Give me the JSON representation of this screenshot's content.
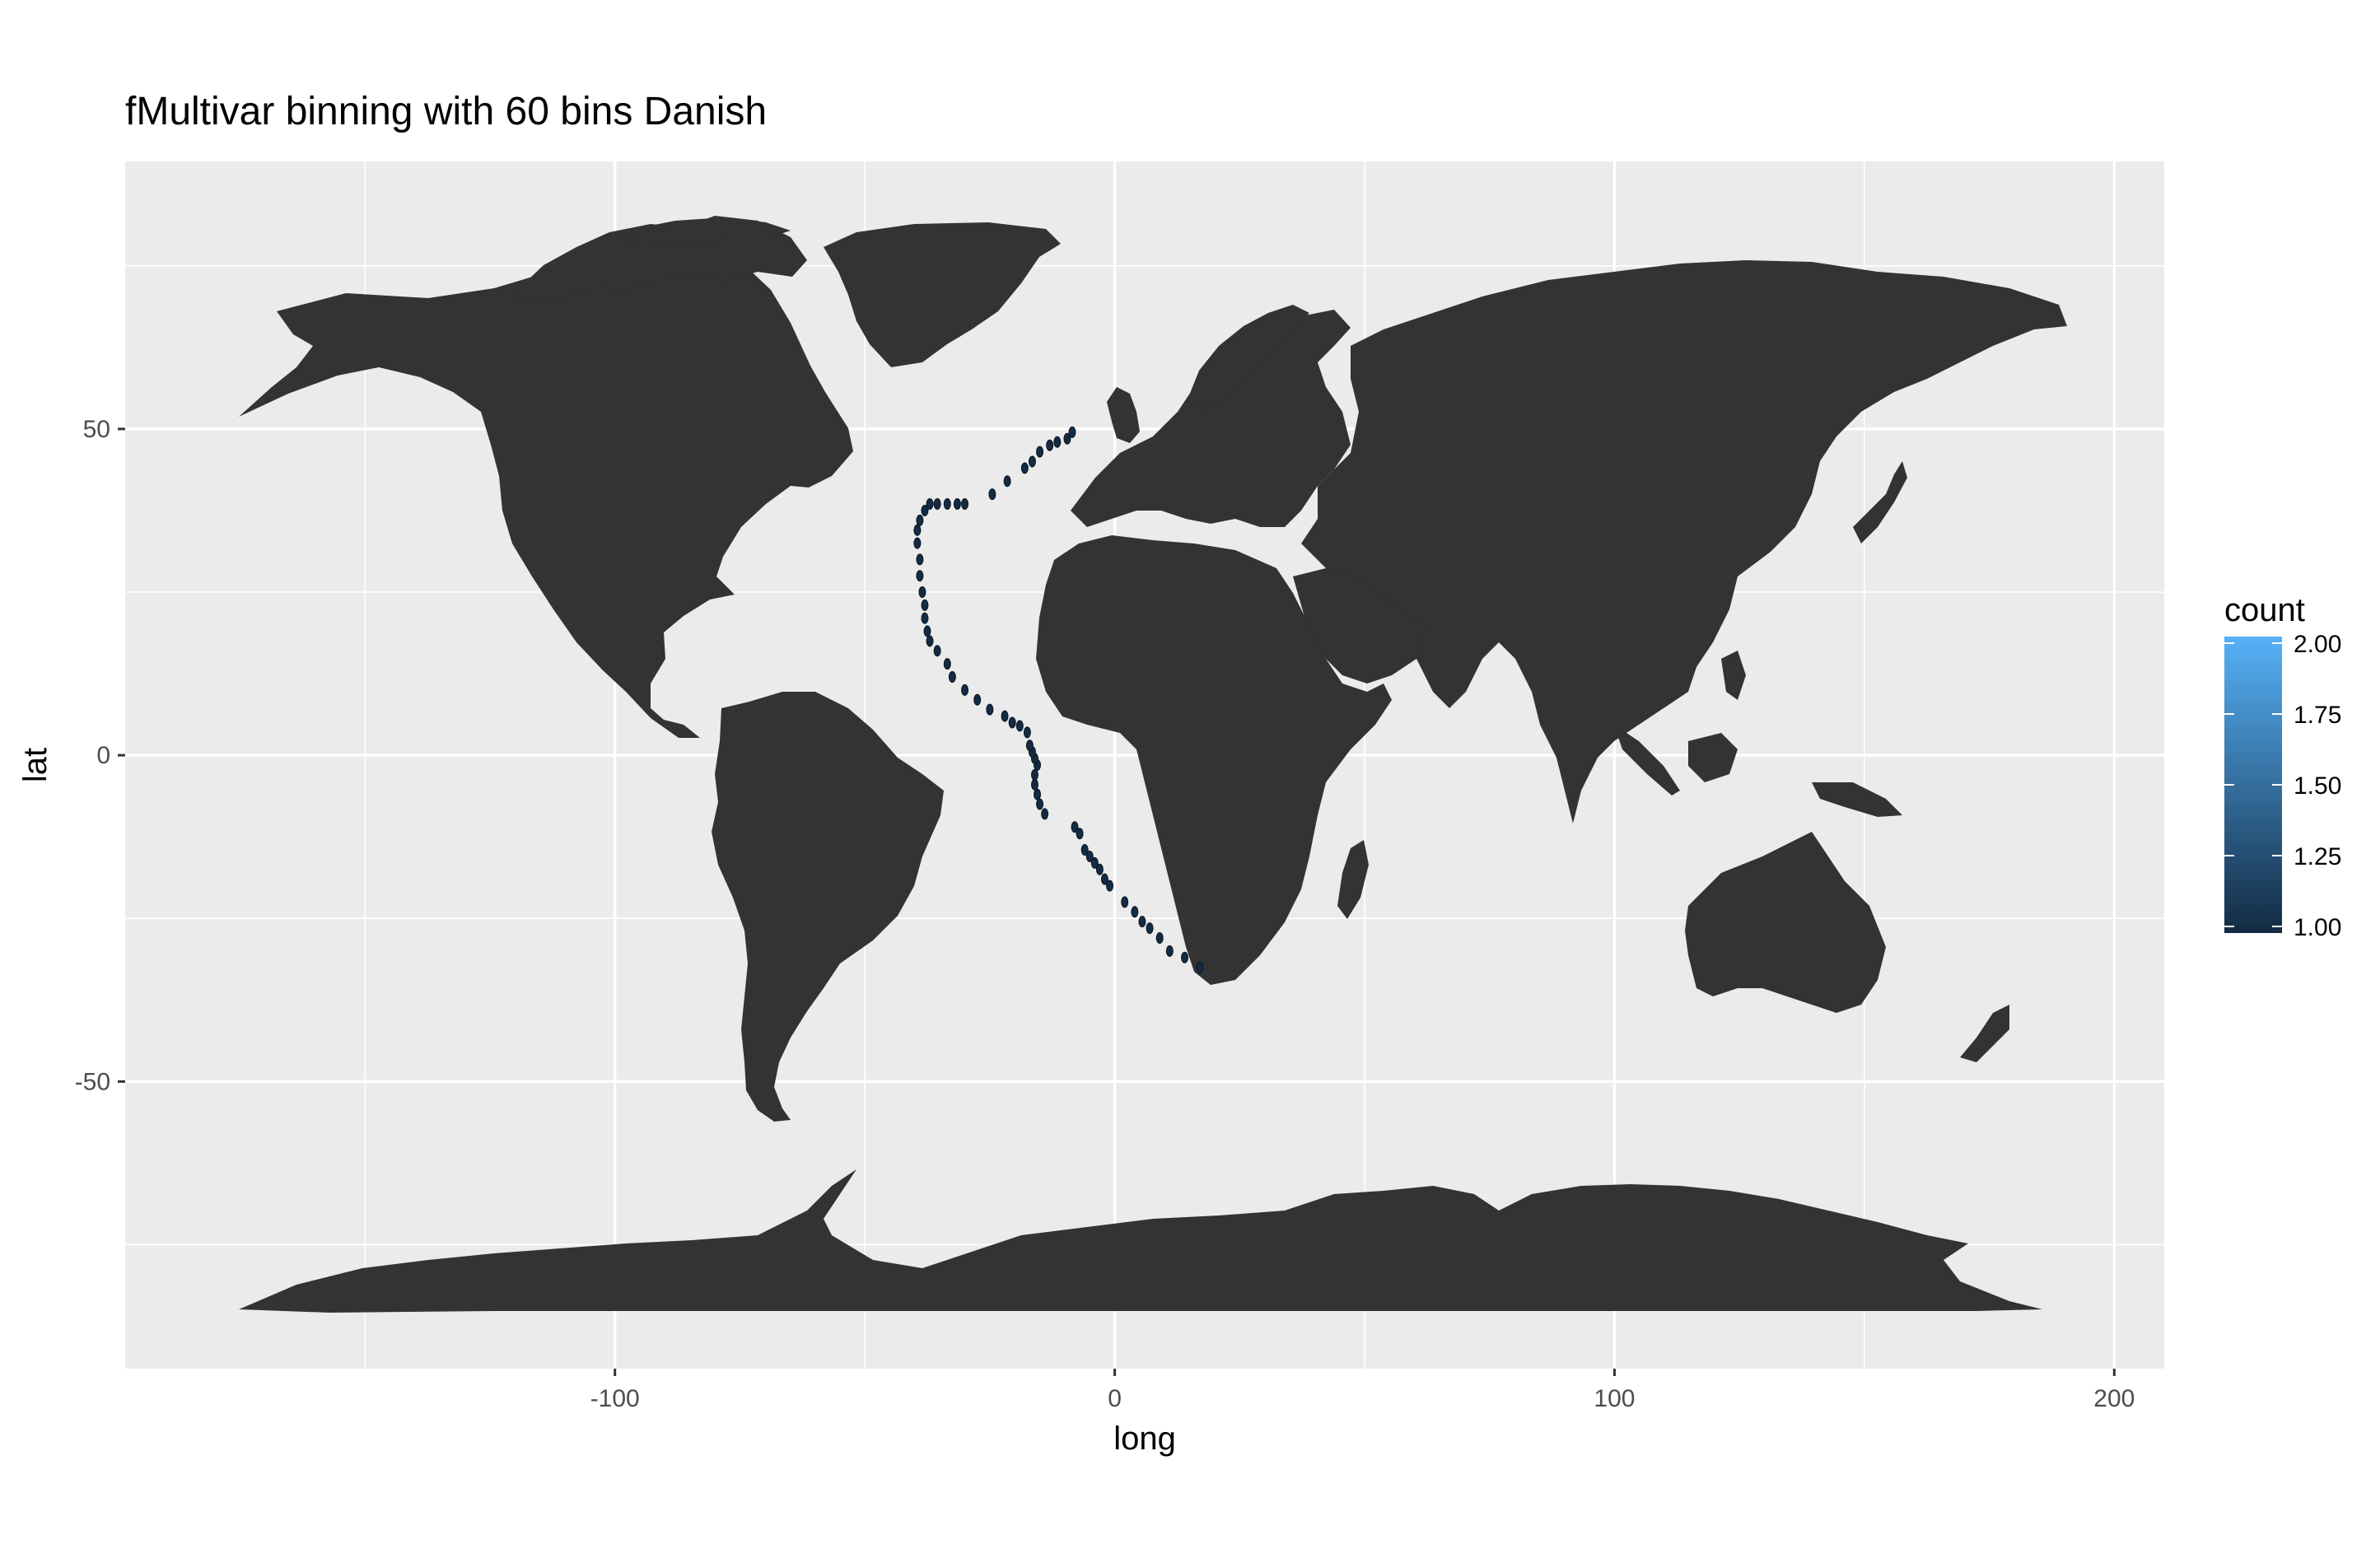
{
  "chart_data": {
    "type": "scatter",
    "title": "fMultivar binning with 60 bins Danish",
    "xlabel": "long",
    "ylabel": "lat",
    "xlim": [
      -198,
      210
    ],
    "ylim": [
      -94,
      91
    ],
    "x_ticks": [
      -100,
      0,
      100,
      200
    ],
    "x_tick_labels": [
      "-100",
      "0",
      "100",
      "200"
    ],
    "y_ticks": [
      -50,
      0,
      50
    ],
    "y_tick_labels": [
      "-50",
      "0",
      "50"
    ],
    "x_minor": [
      -150,
      -50,
      50,
      150
    ],
    "y_minor": [
      -75,
      -25,
      25,
      75
    ],
    "grid": true,
    "background": "world map (land masses)",
    "colors": {
      "panel": "#ebebeb",
      "land": "#333333",
      "grid": "#ffffff",
      "point": "#132b43",
      "low": "#132b43",
      "high": "#56b1f7"
    },
    "legend": {
      "title": "count",
      "position": "right",
      "min": 1.0,
      "max": 2.0,
      "breaks": [
        1.0,
        1.25,
        1.5,
        1.75,
        2.0
      ],
      "labels": [
        "1.00",
        "1.25",
        "1.50",
        "1.75",
        "2.00"
      ]
    },
    "points": [
      {
        "long": 17,
        "lat": -32.5,
        "count": 1
      },
      {
        "long": 14,
        "lat": -31,
        "count": 1
      },
      {
        "long": 11,
        "lat": -30,
        "count": 1
      },
      {
        "long": 9,
        "lat": -28,
        "count": 1
      },
      {
        "long": 7,
        "lat": -26.5,
        "count": 1
      },
      {
        "long": 5.5,
        "lat": -25.5,
        "count": 1
      },
      {
        "long": 4,
        "lat": -24,
        "count": 1
      },
      {
        "long": 2,
        "lat": -22.5,
        "count": 1
      },
      {
        "long": -1,
        "lat": -20,
        "count": 1
      },
      {
        "long": -2,
        "lat": -19,
        "count": 1
      },
      {
        "long": -3,
        "lat": -17.5,
        "count": 1
      },
      {
        "long": -4,
        "lat": -16.5,
        "count": 1
      },
      {
        "long": -5,
        "lat": -15.5,
        "count": 1
      },
      {
        "long": -6,
        "lat": -14.5,
        "count": 1
      },
      {
        "long": -7,
        "lat": -12,
        "count": 1
      },
      {
        "long": -8,
        "lat": -11,
        "count": 1
      },
      {
        "long": -14,
        "lat": -9,
        "count": 1
      },
      {
        "long": -15,
        "lat": -7.5,
        "count": 1
      },
      {
        "long": -15.5,
        "lat": -6,
        "count": 1
      },
      {
        "long": -16,
        "lat": -4.5,
        "count": 1
      },
      {
        "long": -16,
        "lat": -3,
        "count": 1
      },
      {
        "long": -15.5,
        "lat": -1.5,
        "count": 1
      },
      {
        "long": -16,
        "lat": -0.5,
        "count": 1
      },
      {
        "long": -16.5,
        "lat": 0.5,
        "count": 1
      },
      {
        "long": -17,
        "lat": 1.5,
        "count": 1
      },
      {
        "long": -17.5,
        "lat": 3.5,
        "count": 1
      },
      {
        "long": -19,
        "lat": 4.5,
        "count": 1
      },
      {
        "long": -20.5,
        "lat": 5,
        "count": 1
      },
      {
        "long": -22,
        "lat": 6,
        "count": 1
      },
      {
        "long": -25,
        "lat": 7,
        "count": 1
      },
      {
        "long": -27.5,
        "lat": 8.5,
        "count": 1
      },
      {
        "long": -30,
        "lat": 10,
        "count": 1
      },
      {
        "long": -32.5,
        "lat": 12,
        "count": 1
      },
      {
        "long": -33.5,
        "lat": 14,
        "count": 1
      },
      {
        "long": -35.5,
        "lat": 16,
        "count": 1
      },
      {
        "long": -37,
        "lat": 17.5,
        "count": 1
      },
      {
        "long": -37.5,
        "lat": 19,
        "count": 1
      },
      {
        "long": -38,
        "lat": 21,
        "count": 1
      },
      {
        "long": -38,
        "lat": 23,
        "count": 1
      },
      {
        "long": -38.5,
        "lat": 25,
        "count": 1
      },
      {
        "long": -39,
        "lat": 27.5,
        "count": 1
      },
      {
        "long": -39,
        "lat": 30,
        "count": 1
      },
      {
        "long": -39.5,
        "lat": 32.5,
        "count": 1
      },
      {
        "long": -39.5,
        "lat": 34.5,
        "count": 1
      },
      {
        "long": -39,
        "lat": 36,
        "count": 1
      },
      {
        "long": -38,
        "lat": 37.5,
        "count": 1
      },
      {
        "long": -37,
        "lat": 38.5,
        "count": 1
      },
      {
        "long": -35.5,
        "lat": 38.5,
        "count": 1
      },
      {
        "long": -33.5,
        "lat": 38.5,
        "count": 1
      },
      {
        "long": -31.5,
        "lat": 38.5,
        "count": 1
      },
      {
        "long": -30,
        "lat": 38.5,
        "count": 1
      },
      {
        "long": -24.5,
        "lat": 40,
        "count": 1
      },
      {
        "long": -21.5,
        "lat": 42,
        "count": 1
      },
      {
        "long": -18,
        "lat": 44,
        "count": 1
      },
      {
        "long": -16.5,
        "lat": 45,
        "count": 1
      },
      {
        "long": -15,
        "lat": 46.5,
        "count": 1
      },
      {
        "long": -13,
        "lat": 47.5,
        "count": 1
      },
      {
        "long": -11.5,
        "lat": 48,
        "count": 1
      },
      {
        "long": -9.5,
        "lat": 48.5,
        "count": 1
      },
      {
        "long": -8.5,
        "lat": 49.5,
        "count": 1
      }
    ]
  }
}
